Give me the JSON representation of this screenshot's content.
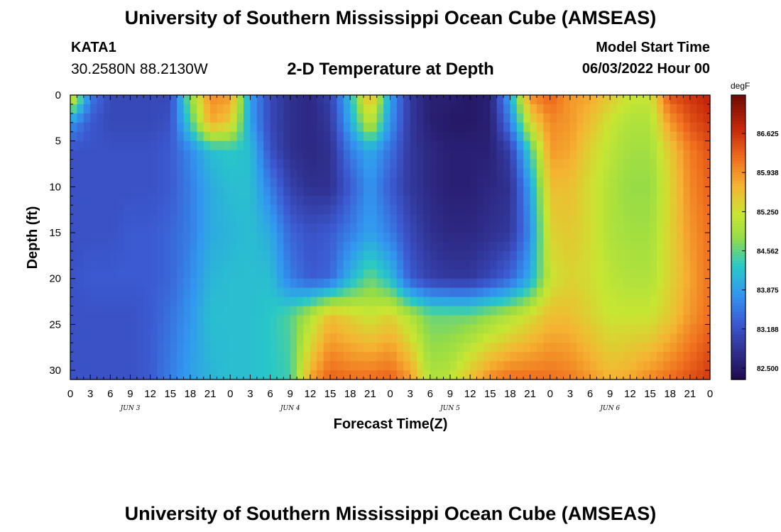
{
  "header": {
    "title": "University of Southern Mississippi Ocean Cube (AMSEAS)",
    "station_id": "KATA1",
    "station_coords": "30.2580N  88.2130W",
    "plot_title": "2-D Temperature at Depth",
    "start_label": "Model Start Time",
    "start_value": "06/03/2022 Hour 00"
  },
  "footer": {
    "title": "University of Southern Mississippi Ocean Cube (AMSEAS)"
  },
  "chart_data": {
    "type": "heatmap",
    "title": "2-D Temperature at Depth",
    "xlabel": "Forecast Time(Z)",
    "ylabel": "Depth (ft)",
    "x_tick_labels": [
      "0",
      "3",
      "6",
      "9",
      "12",
      "15",
      "18",
      "21",
      "0",
      "3",
      "6",
      "9",
      "12",
      "15",
      "18",
      "21",
      "0",
      "3",
      "6",
      "9",
      "12",
      "15",
      "18",
      "21",
      "0",
      "3",
      "6",
      "9",
      "12",
      "15",
      "18",
      "21",
      "0"
    ],
    "date_labels": [
      "JUN 3",
      "JUN 4",
      "JUN 5",
      "JUN 6"
    ],
    "x_range_hours": [
      0,
      96
    ],
    "y_ticks": [
      0,
      5,
      10,
      15,
      20,
      25,
      30
    ],
    "y_range_ft": [
      0,
      31
    ],
    "y_inverted": true,
    "colorbar": {
      "unit": "degF",
      "ticks": [
        "82.500",
        "83.188",
        "83.875",
        "84.562",
        "85.250",
        "85.938",
        "86.625"
      ],
      "range": [
        82.3,
        87.3
      ]
    },
    "temperature_degF": {
      "hours": [
        0,
        3,
        6,
        9,
        12,
        15,
        18,
        21,
        24,
        27,
        30,
        33,
        36,
        39,
        42,
        45,
        48,
        51,
        54,
        57,
        60,
        63,
        66,
        69,
        72,
        75,
        78,
        81,
        84,
        87,
        90,
        93,
        96
      ],
      "rows": [
        {
          "depth_ft": 0,
          "values": [
            85.6,
            83.6,
            83.1,
            83.1,
            83.1,
            83.1,
            84.8,
            86.0,
            85.9,
            83.9,
            83.1,
            82.8,
            82.7,
            83.0,
            84.2,
            85.8,
            83.9,
            82.9,
            82.6,
            82.6,
            82.5,
            82.6,
            84.0,
            86.0,
            86.3,
            85.9,
            85.8,
            85.5,
            85.2,
            85.2,
            86.4,
            86.6,
            86.8
          ]
        },
        {
          "depth_ft": 3,
          "values": [
            83.8,
            83.3,
            83.1,
            83.1,
            83.1,
            83.2,
            84.4,
            85.8,
            85.5,
            83.9,
            83.1,
            82.8,
            82.7,
            82.9,
            84.0,
            85.2,
            83.8,
            82.9,
            82.6,
            82.5,
            82.5,
            82.6,
            83.6,
            85.3,
            86.0,
            85.9,
            85.6,
            85.2,
            85.0,
            85.0,
            85.9,
            86.4,
            86.6
          ]
        },
        {
          "depth_ft": 6,
          "values": [
            83.2,
            83.2,
            83.2,
            83.2,
            83.2,
            83.3,
            83.7,
            84.2,
            84.3,
            84.2,
            83.2,
            82.8,
            82.7,
            82.8,
            83.6,
            84.0,
            83.5,
            82.9,
            82.7,
            82.6,
            82.6,
            82.6,
            83.0,
            84.4,
            85.9,
            85.8,
            85.4,
            85.1,
            84.9,
            84.9,
            85.5,
            86.1,
            86.4
          ]
        },
        {
          "depth_ft": 10,
          "values": [
            83.2,
            83.2,
            83.2,
            83.2,
            83.2,
            83.3,
            83.6,
            84.0,
            84.2,
            84.2,
            83.6,
            83.0,
            82.8,
            82.8,
            83.3,
            83.8,
            83.3,
            82.9,
            82.7,
            82.6,
            82.6,
            82.7,
            82.8,
            83.9,
            85.6,
            85.6,
            85.3,
            85.0,
            84.8,
            84.8,
            85.4,
            86.0,
            86.3
          ]
        },
        {
          "depth_ft": 15,
          "values": [
            83.2,
            83.2,
            83.2,
            83.3,
            83.3,
            83.4,
            83.6,
            84.0,
            84.1,
            84.2,
            84.0,
            83.4,
            83.2,
            83.3,
            83.6,
            83.9,
            83.6,
            83.1,
            82.8,
            82.7,
            82.7,
            82.8,
            82.9,
            83.7,
            85.4,
            85.5,
            85.3,
            85.0,
            84.9,
            84.9,
            85.4,
            85.9,
            86.2
          ]
        },
        {
          "depth_ft": 20,
          "values": [
            83.2,
            83.3,
            83.3,
            83.3,
            83.3,
            83.4,
            83.7,
            84.1,
            84.2,
            84.2,
            84.2,
            83.6,
            83.3,
            83.4,
            84.1,
            84.6,
            84.2,
            83.3,
            83.0,
            82.9,
            82.9,
            83.1,
            83.4,
            84.0,
            85.2,
            85.4,
            85.3,
            85.1,
            85.0,
            85.0,
            85.4,
            85.8,
            86.2
          ]
        },
        {
          "depth_ft": 24,
          "values": [
            83.2,
            83.2,
            83.2,
            83.2,
            83.3,
            83.5,
            83.8,
            84.2,
            84.2,
            84.2,
            84.3,
            84.5,
            85.0,
            85.6,
            85.4,
            85.2,
            85.4,
            85.0,
            84.6,
            84.6,
            84.6,
            84.8,
            85.0,
            85.3,
            85.6,
            85.6,
            85.4,
            85.2,
            85.2,
            85.2,
            85.5,
            85.9,
            86.2
          ]
        },
        {
          "depth_ft": 31,
          "values": [
            83.2,
            83.2,
            83.2,
            83.2,
            83.3,
            83.6,
            83.9,
            84.1,
            84.2,
            84.2,
            84.3,
            84.4,
            85.8,
            86.3,
            86.2,
            86.2,
            86.3,
            85.9,
            85.0,
            85.1,
            85.6,
            86.0,
            86.2,
            86.2,
            86.2,
            86.1,
            85.9,
            85.7,
            85.8,
            86.0,
            86.2,
            86.4,
            86.6
          ]
        }
      ]
    }
  }
}
